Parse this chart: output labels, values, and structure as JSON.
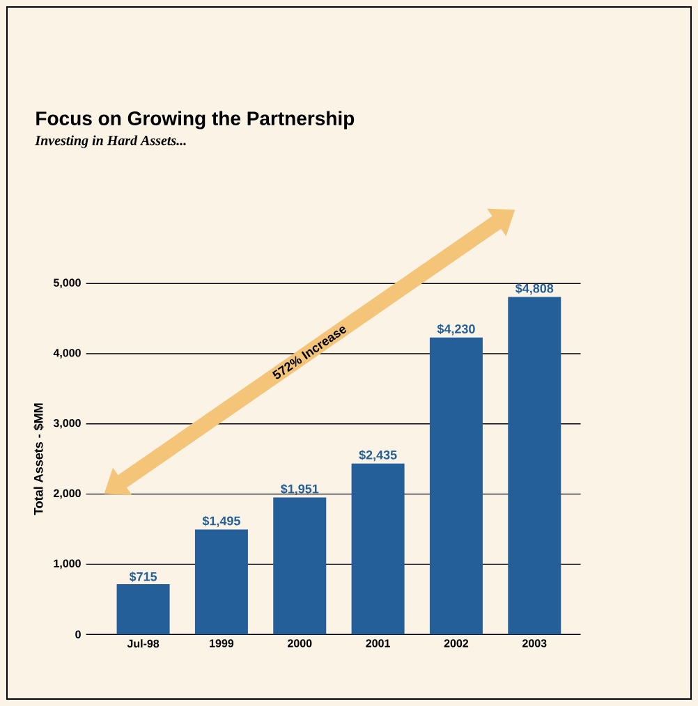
{
  "chart_data": {
    "type": "bar",
    "title": "Focus on Growing the Partnership",
    "subtitle": "Investing in Hard Assets...",
    "ylabel": "Total Assets - $MM",
    "categories": [
      "Jul-98",
      "1999",
      "2000",
      "2001",
      "2002",
      "2003"
    ],
    "values": [
      715,
      1495,
      1951,
      2435,
      4230,
      4808
    ],
    "value_labels": [
      "$715",
      "$1,495",
      "$1,951",
      "$2,435",
      "$4,230",
      "$4,808"
    ],
    "color": "#245f9a",
    "ylim": [
      0,
      5000
    ],
    "yticks": [
      0,
      {
        "value": 1000,
        "label": "1,000"
      },
      {
        "value": 2000,
        "label": "2,000"
      },
      {
        "value": 3000,
        "label": "3,000"
      },
      {
        "value": 4000,
        "label": "4,000"
      },
      {
        "value": 5000,
        "label": "5,000"
      }
    ],
    "grid": "y",
    "annotations": [
      "572% Increase"
    ]
  }
}
